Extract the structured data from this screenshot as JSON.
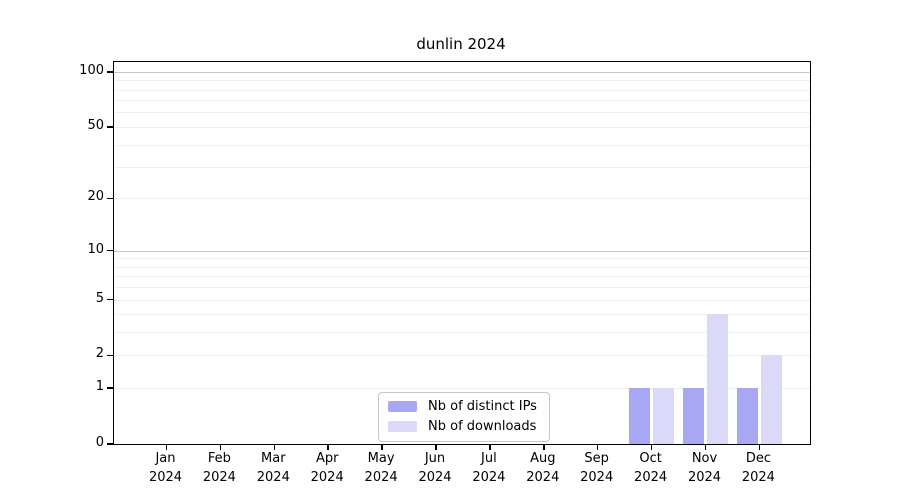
{
  "title": "dunlin 2024",
  "colors": {
    "ips_bar": "#a7a7f4",
    "downloads_bar": "#dadaf8",
    "grid_minor": "#f0f0f0",
    "grid_major": "#c6c6c6",
    "spine": "#000000",
    "tick": "#000000",
    "text": "#000000",
    "legend_border": "#c8c8c8",
    "background": "#ffffff"
  },
  "chart_data": {
    "type": "bar",
    "title": "dunlin 2024",
    "categories": [
      "Jan 2024",
      "Feb 2024",
      "Mar 2024",
      "Apr 2024",
      "May 2024",
      "Jun 2024",
      "Jul 2024",
      "Aug 2024",
      "Sep 2024",
      "Oct 2024",
      "Nov 2024",
      "Dec 2024"
    ],
    "series": [
      {
        "name": "Nb of distinct IPs",
        "color": "#a7a7f4",
        "values": [
          0,
          0,
          0,
          0,
          0,
          0,
          0,
          0,
          0,
          1,
          1,
          1
        ]
      },
      {
        "name": "Nb of downloads",
        "color": "#dadaf8",
        "values": [
          0,
          0,
          0,
          0,
          0,
          0,
          0,
          0,
          0,
          1,
          4,
          2
        ]
      }
    ],
    "xlabel": "",
    "ylabel": "",
    "yscale": "log1p",
    "ylim": [
      0,
      113
    ],
    "y_ticks": [
      0,
      1,
      2,
      5,
      10,
      20,
      50,
      100
    ],
    "grid": "horizontal, minor lines at 1-9/10-90, major lines at 10 and 100",
    "legend_position": "inside-bottom-center"
  }
}
